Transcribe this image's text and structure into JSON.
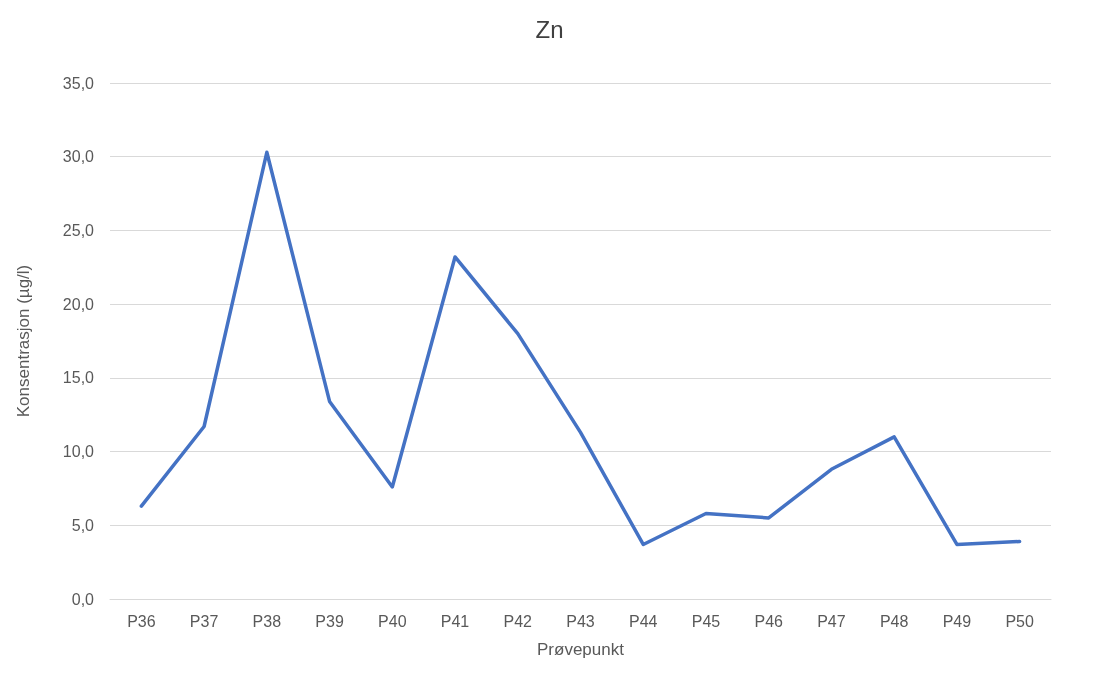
{
  "chart_data": {
    "type": "line",
    "title": "Zn",
    "xlabel": "Prøvepunkt",
    "ylabel": "Konsentrasjon (µg/l)",
    "categories": [
      "P36",
      "P37",
      "P38",
      "P39",
      "P40",
      "P41",
      "P42",
      "P43",
      "P44",
      "P45",
      "P46",
      "P47",
      "P48",
      "P49",
      "P50"
    ],
    "series": [
      {
        "color": "#4472c4",
        "values": [
          6.3,
          11.7,
          30.3,
          13.4,
          7.6,
          23.2,
          18.0,
          11.3,
          3.7,
          5.8,
          5.5,
          8.8,
          11.0,
          3.7,
          3.9
        ]
      }
    ],
    "ylim": [
      0,
      35
    ],
    "yticks": [
      {
        "value": 0,
        "label": "0,0"
      },
      {
        "value": 5,
        "label": "5,0"
      },
      {
        "value": 10,
        "label": "10,0"
      },
      {
        "value": 15,
        "label": "15,0"
      },
      {
        "value": 20,
        "label": "20,0"
      },
      {
        "value": 25,
        "label": "25,0"
      },
      {
        "value": 30,
        "label": "30,0"
      },
      {
        "value": 35,
        "label": "35,0"
      }
    ],
    "grid": "y",
    "marker": "none",
    "line_style": "solid"
  }
}
